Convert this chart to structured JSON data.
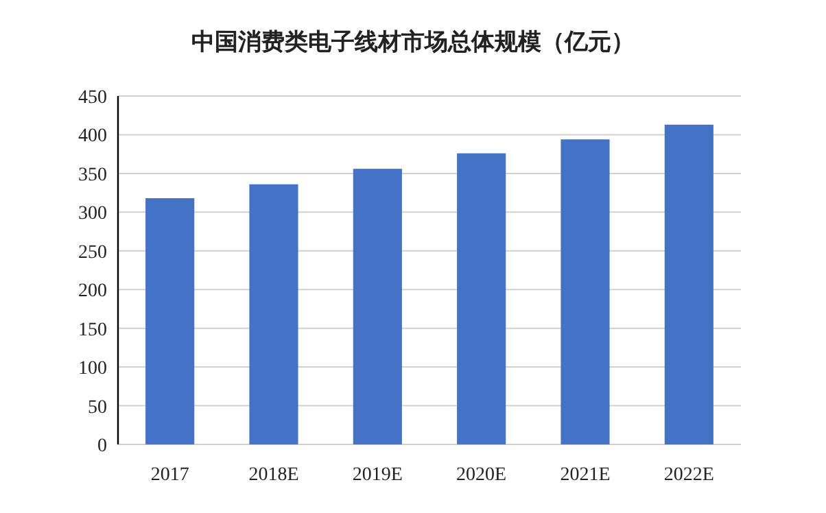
{
  "chart_data": {
    "type": "bar",
    "title": "中国消费类电子线材市场总体规模（亿元）",
    "categories": [
      "2017",
      "2018E",
      "2019E",
      "2020E",
      "2021E",
      "2022E"
    ],
    "values": [
      318,
      336,
      356,
      376,
      394,
      413
    ],
    "color": "#4472c4",
    "ylim": [
      0,
      450
    ],
    "yticks": [
      0,
      50,
      100,
      150,
      200,
      250,
      300,
      350,
      400,
      450
    ],
    "grid": "y"
  }
}
